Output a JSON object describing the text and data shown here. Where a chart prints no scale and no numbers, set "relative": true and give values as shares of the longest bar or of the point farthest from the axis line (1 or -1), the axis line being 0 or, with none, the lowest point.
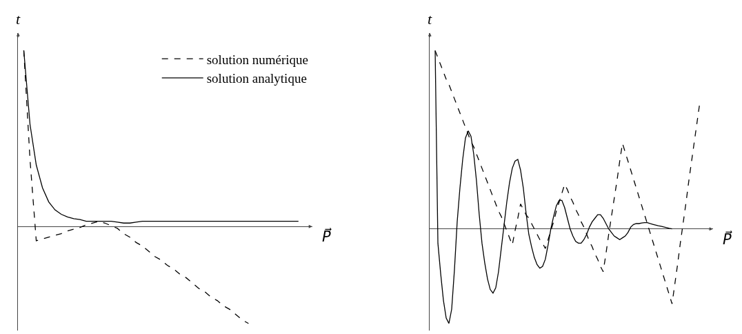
{
  "chart_data": [
    {
      "type": "line",
      "relative": true,
      "xlabel": "P⃗",
      "ylabel": "t",
      "legend": "top right",
      "categories": [
        null,
        null,
        null,
        null,
        null,
        null,
        null,
        null,
        null,
        null,
        null,
        null,
        null,
        null,
        null,
        null,
        null,
        null,
        null,
        null,
        null,
        null,
        null,
        null,
        null,
        null,
        null,
        null,
        null,
        null,
        null,
        null,
        null,
        null,
        null,
        null,
        null,
        null,
        null,
        null,
        null,
        null,
        null,
        null,
        null
      ],
      "series": [
        {
          "name": "solution numérique",
          "color": "#000000",
          "line_style": "dashed",
          "values": [
            1.0,
            0.38,
            -0.08,
            -0.07,
            -0.06,
            -0.05,
            -0.04,
            -0.025,
            -0.015,
            -0.005,
            0.01,
            0.02,
            0.03,
            0.02,
            0.005,
            -0.01,
            -0.04,
            -0.06,
            -0.09,
            -0.11,
            -0.14,
            -0.17,
            -0.19,
            -0.22,
            -0.24,
            -0.27,
            -0.29,
            -0.32,
            -0.35,
            -0.37,
            -0.4,
            -0.42,
            -0.45,
            -0.47,
            -0.5,
            -0.53,
            -0.55,
            null,
            null,
            null,
            null,
            null,
            null,
            null,
            null
          ]
        },
        {
          "name": "solution analytique",
          "color": "#000000",
          "line_style": "solid",
          "values": [
            1.0,
            0.58,
            0.35,
            0.22,
            0.14,
            0.095,
            0.07,
            0.055,
            0.045,
            0.04,
            0.03,
            0.03,
            0.03,
            0.03,
            0.03,
            0.025,
            0.02,
            0.02,
            0.025,
            0.03,
            0.03,
            0.03,
            0.03,
            0.03,
            0.03,
            0.03,
            0.03,
            0.03,
            0.03,
            0.03,
            0.03,
            0.03,
            0.03,
            0.03,
            0.03,
            0.03,
            0.03,
            0.03,
            0.03,
            0.03,
            0.03,
            0.03,
            0.03,
            0.03,
            0.03
          ]
        }
      ]
    },
    {
      "type": "line",
      "relative": true,
      "xlabel": "P⃗",
      "ylabel": "t",
      "categories": [
        null,
        null,
        null,
        null,
        null,
        null,
        null,
        null,
        null,
        null,
        null,
        null,
        null,
        null,
        null,
        null,
        null,
        null,
        null,
        null,
        null,
        null,
        null,
        null,
        null,
        null,
        null,
        null,
        null,
        null,
        null,
        null,
        null,
        null,
        null,
        null,
        null,
        null,
        null,
        null,
        null,
        null,
        null,
        null,
        null,
        null,
        null,
        null,
        null,
        null,
        null,
        null,
        null,
        null,
        null,
        null,
        null,
        null,
        null,
        null,
        null,
        null,
        null,
        null,
        null,
        null,
        null,
        null,
        null,
        null,
        null,
        null,
        null,
        null,
        null,
        null,
        null,
        null,
        null,
        null,
        null,
        null,
        null,
        null,
        null,
        null,
        null,
        null,
        null,
        null,
        null,
        null,
        null,
        null,
        null,
        null,
        null
      ],
      "series": [
        {
          "color": "#000000",
          "line_style": "dashed",
          "values": [
            1.0,
            0.96,
            0.92,
            0.88,
            0.84,
            0.81,
            0.77,
            0.73,
            0.69,
            0.65,
            0.61,
            0.57,
            0.53,
            0.49,
            0.46,
            0.42,
            0.38,
            0.34,
            0.3,
            0.26,
            0.22,
            0.18,
            0.14,
            0.1,
            0.07,
            0.03,
            -0.01,
            -0.05,
            -0.09,
            -0.01,
            0.06,
            0.14,
            0.11,
            0.08,
            0.06,
            0.03,
            0,
            -0.03,
            -0.06,
            -0.08,
            -0.11,
            -0.06,
            -0.01,
            0.04,
            0.1,
            0.15,
            0.2,
            0.25,
            0.22,
            0.18,
            0.15,
            0.11,
            0.08,
            0.04,
            0.01,
            -0.03,
            -0.07,
            -0.1,
            -0.14,
            -0.17,
            -0.21,
            -0.24,
            -0.14,
            -0.03,
            0.07,
            0.17,
            0.27,
            0.38,
            0.48,
            0.43,
            0.38,
            0.33,
            0.28,
            0.23,
            0.18,
            0.13,
            0.08,
            0.03,
            -0.02,
            -0.07,
            -0.12,
            -0.17,
            -0.22,
            -0.27,
            -0.32,
            -0.37,
            -0.42,
            -0.31,
            -0.2,
            -0.08,
            0.03,
            0.14,
            0.26,
            0.37,
            0.48,
            0.59,
            0.7
          ]
        },
        {
          "color": "#000000",
          "line_style": "solid",
          "values": [
            1.0,
            -0.08,
            -0.25,
            -0.4,
            -0.5,
            -0.53,
            -0.45,
            -0.23,
            0.04,
            0.23,
            0.39,
            0.51,
            0.55,
            0.52,
            0.42,
            0.27,
            0.08,
            -0.08,
            -0.19,
            -0.28,
            -0.34,
            -0.36,
            -0.33,
            -0.24,
            -0.11,
            0.02,
            0.15,
            0.26,
            0.34,
            0.38,
            0.39,
            0.33,
            0.23,
            0.09,
            -0.03,
            -0.1,
            -0.16,
            -0.2,
            -0.22,
            -0.21,
            -0.17,
            -0.09,
            0,
            0.07,
            0.13,
            0.16,
            0.16,
            0.12,
            0.06,
            0,
            -0.04,
            -0.07,
            -0.08,
            -0.08,
            -0.06,
            -0.03,
            0.01,
            0.04,
            0.06,
            0.08,
            0.08,
            0.06,
            0.03,
            0,
            -0.02,
            -0.04,
            -0.05,
            -0.06,
            -0.05,
            -0.04,
            -0.02,
            0.01,
            0.025,
            0.03,
            0.03,
            0.033,
            0.035,
            0.035,
            0.03,
            0.026,
            0.022,
            0.018,
            0.015,
            0.011,
            0.007,
            0.003,
            0,
            null,
            null,
            null,
            null,
            null,
            null,
            null,
            null,
            null,
            null
          ]
        }
      ]
    }
  ]
}
